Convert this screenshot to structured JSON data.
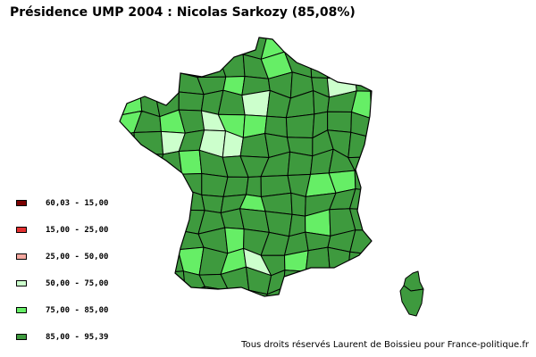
{
  "title": "Présidence UMP 2004 : Nicolas Sarkozy (85,08%)",
  "legend": [
    {
      "label": "60,03 - 15,00",
      "color": "#7a0000"
    },
    {
      "label": "15,00 - 25,00",
      "color": "#e33030"
    },
    {
      "label": "25,00 - 50,00",
      "color": "#f4a8a0"
    },
    {
      "label": "50,00 - 75,00",
      "color": "#ccffcc"
    },
    {
      "label": "75,00 - 85,00",
      "color": "#66ee66"
    },
    {
      "label": "85,00 - 95,39",
      "color": "#3e9a3e"
    }
  ],
  "credit": "Tous droits réservés Laurent de Boissieu pour France-politique.fr"
}
